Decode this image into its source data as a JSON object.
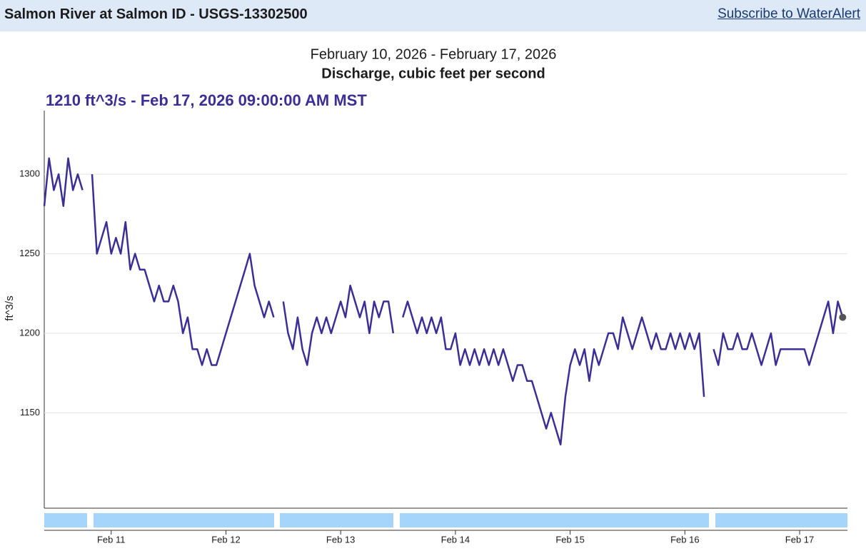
{
  "header": {
    "title": "Salmon River at Salmon ID - USGS-13302500",
    "link": "Subscribe to WaterAlert"
  },
  "chart_data": {
    "type": "line",
    "subtitle": "February 10, 2026 - February 17, 2026",
    "title": "Discharge, cubic feet per second",
    "tooltip": "1210 ft^3/s - Feb 17, 2026 09:00:00 AM MST",
    "y_label": "ft^3/s",
    "color": "#3b2e96",
    "grid": true,
    "ylim": [
      1090,
      1340
    ],
    "yticks": [
      1150,
      1200,
      1250,
      1300
    ],
    "xlim": [
      0,
      168
    ],
    "xticks": [
      {
        "value": 14,
        "label": "Feb 11"
      },
      {
        "value": 38,
        "label": "Feb 12"
      },
      {
        "value": 62,
        "label": "Feb 13"
      },
      {
        "value": 86,
        "label": "Feb 14"
      },
      {
        "value": 110,
        "label": "Feb 15"
      },
      {
        "value": 134,
        "label": "Feb 16"
      },
      {
        "value": 158,
        "label": "Feb 17"
      }
    ],
    "values": [
      1280,
      1310,
      1290,
      1300,
      1280,
      1310,
      1290,
      1300,
      1290,
      null,
      1300,
      1250,
      1260,
      1270,
      1250,
      1260,
      1250,
      1270,
      1240,
      1250,
      1240,
      1240,
      1230,
      1220,
      1230,
      1220,
      1220,
      1230,
      1220,
      1200,
      1210,
      1190,
      1190,
      1180,
      1190,
      1180,
      1180,
      1190,
      1200,
      1210,
      1220,
      1230,
      1240,
      1250,
      1230,
      1220,
      1210,
      1220,
      1210,
      null,
      1220,
      1200,
      1190,
      1210,
      1190,
      1180,
      1200,
      1210,
      1200,
      1210,
      1200,
      1210,
      1220,
      1210,
      1230,
      1220,
      1210,
      1220,
      1200,
      1220,
      1210,
      1220,
      1220,
      1200,
      null,
      1210,
      1220,
      1210,
      1200,
      1210,
      1200,
      1210,
      1200,
      1210,
      1190,
      1190,
      1200,
      1180,
      1190,
      1180,
      1190,
      1180,
      1190,
      1180,
      1190,
      1180,
      1190,
      1180,
      1170,
      1180,
      1180,
      1170,
      1170,
      1160,
      1150,
      1140,
      1150,
      1140,
      1130,
      1160,
      1180,
      1190,
      1180,
      1190,
      1170,
      1190,
      1180,
      1190,
      1200,
      1200,
      1190,
      1210,
      1200,
      1190,
      1200,
      1210,
      1200,
      1190,
      1200,
      1190,
      1190,
      1200,
      1190,
      1200,
      1190,
      1200,
      1190,
      1200,
      1160,
      null,
      1190,
      1180,
      1200,
      1190,
      1190,
      1200,
      1190,
      1190,
      1200,
      1190,
      1180,
      1190,
      1200,
      1180,
      1190,
      1190,
      1190,
      1190,
      1190,
      1190,
      1180,
      1190,
      1200,
      1210,
      1220,
      1200,
      1220,
      1210
    ]
  }
}
